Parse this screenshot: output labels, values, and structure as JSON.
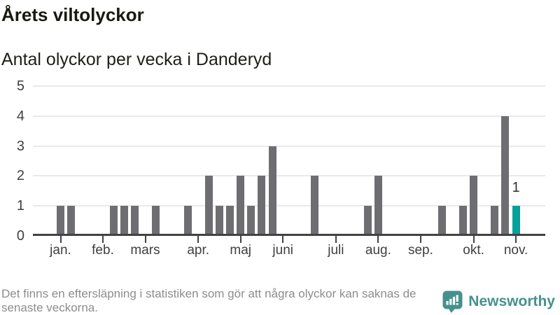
{
  "header": {
    "title": "Årets viltolyckor",
    "subtitle": "Antal olyckor per vecka i Danderyd"
  },
  "chart_data": {
    "type": "bar",
    "title": "Årets viltolyckor",
    "subtitle": "Antal olyckor per vecka i Danderyd",
    "xlabel": "",
    "ylabel": "",
    "ylim": [
      0,
      5
    ],
    "yticks": [
      0,
      1,
      2,
      3,
      4,
      5
    ],
    "grid": true,
    "x_unit": "vecka",
    "bars": [
      {
        "week": 1,
        "value": 1
      },
      {
        "week": 2,
        "value": 1
      },
      {
        "week": 6,
        "value": 1
      },
      {
        "week": 7,
        "value": 1
      },
      {
        "week": 8,
        "value": 1
      },
      {
        "week": 10,
        "value": 1
      },
      {
        "week": 13,
        "value": 1
      },
      {
        "week": 15,
        "value": 2
      },
      {
        "week": 16,
        "value": 1
      },
      {
        "week": 17,
        "value": 1
      },
      {
        "week": 18,
        "value": 2
      },
      {
        "week": 19,
        "value": 1
      },
      {
        "week": 20,
        "value": 2
      },
      {
        "week": 21,
        "value": 3
      },
      {
        "week": 25,
        "value": 2
      },
      {
        "week": 30,
        "value": 1
      },
      {
        "week": 31,
        "value": 2
      },
      {
        "week": 37,
        "value": 1
      },
      {
        "week": 39,
        "value": 1
      },
      {
        "week": 40,
        "value": 2
      },
      {
        "week": 42,
        "value": 1
      },
      {
        "week": 43,
        "value": 4
      },
      {
        "week": 44,
        "value": 1,
        "highlight": true,
        "label": "1"
      }
    ],
    "months": [
      {
        "label": "jan.",
        "week": 1
      },
      {
        "label": "feb.",
        "week": 5
      },
      {
        "label": "mars",
        "week": 9
      },
      {
        "label": "apr.",
        "week": 14
      },
      {
        "label": "maj",
        "week": 18
      },
      {
        "label": "juni",
        "week": 22
      },
      {
        "label": "juli",
        "week": 27
      },
      {
        "label": "aug.",
        "week": 31
      },
      {
        "label": "sep.",
        "week": 35
      },
      {
        "label": "okt.",
        "week": 40
      },
      {
        "label": "nov.",
        "week": 44
      }
    ],
    "colors": {
      "bar": "#6d6d72",
      "highlight": "#00a29c",
      "axis_text": "#3f3f3f"
    }
  },
  "footer": {
    "note_lines": [
      "Det finns en eftersläpning i statistiken som gör att några olyckor kan saknas de",
      "senaste veckorna."
    ]
  },
  "brand": {
    "name": "Newsworthy",
    "color": "#45918e",
    "logo_icon": "bar-chart-speech-bubble-icon"
  }
}
